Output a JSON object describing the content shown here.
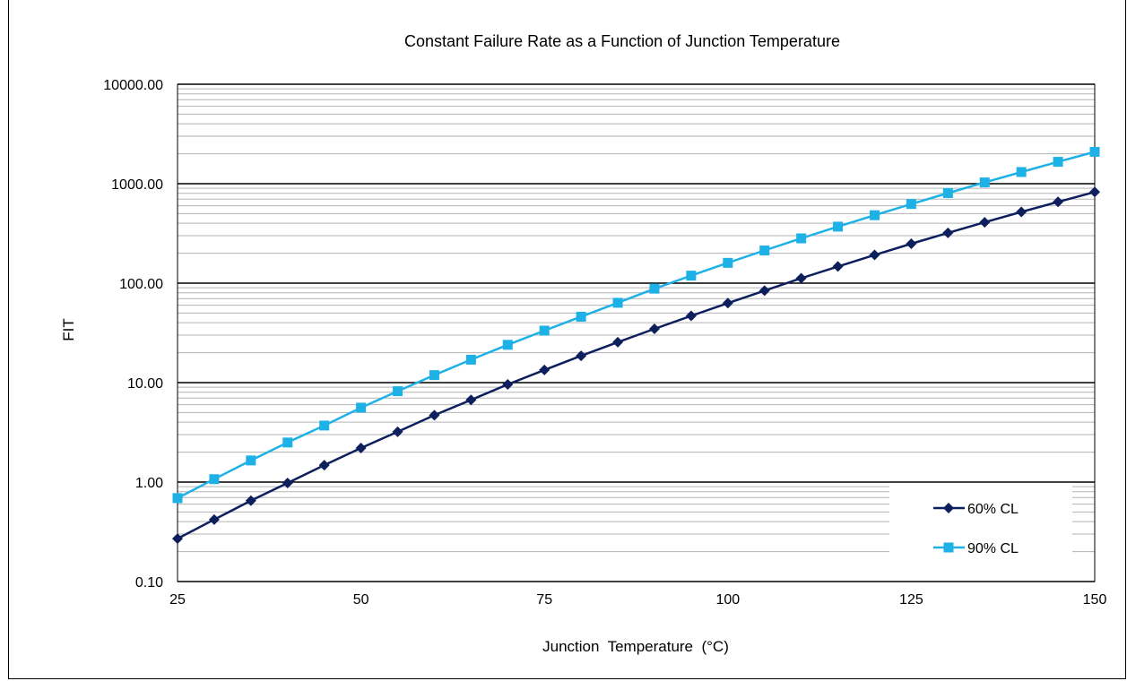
{
  "chart_data": {
    "type": "line",
    "title": "Constant Failure Rate as a Function of Junction Temperature",
    "xlabel": "Junction  Temperature  (°C)",
    "ylabel": "FIT",
    "x_scale": "linear",
    "y_scale": "log",
    "xlim": [
      25,
      150
    ],
    "ylim": [
      0.1,
      10000
    ],
    "x_ticks": [
      25,
      50,
      75,
      100,
      125,
      150
    ],
    "x_tick_labels": [
      "25",
      "50",
      "75",
      "100",
      "125",
      "150"
    ],
    "y_ticks": [
      0.1,
      1,
      10,
      100,
      1000,
      10000
    ],
    "y_tick_labels": [
      "0.10",
      "1.00",
      "10.00",
      "100.00",
      "1000.00",
      "10000.00"
    ],
    "grid": true,
    "legend_position": "bottom-right",
    "x": [
      25,
      30,
      35,
      40,
      45,
      50,
      55,
      60,
      65,
      70,
      75,
      80,
      85,
      90,
      95,
      100,
      105,
      110,
      115,
      120,
      125,
      130,
      135,
      140,
      145,
      150
    ],
    "series": [
      {
        "name": "60% CL",
        "color": "#0d1f5c",
        "marker": "diamond",
        "values": [
          0.27,
          0.42,
          0.65,
          0.98,
          1.48,
          2.2,
          3.2,
          4.7,
          6.7,
          9.6,
          13.4,
          18.6,
          25.5,
          34.7,
          46.9,
          63.0,
          84.0,
          112,
          147,
          192,
          249,
          320,
          409,
          520,
          657,
          825
        ]
      },
      {
        "name": "90% CL",
        "color": "#1eb1e6",
        "marker": "square",
        "values": [
          0.69,
          1.07,
          1.65,
          2.5,
          3.7,
          5.6,
          8.2,
          11.9,
          17.0,
          24.0,
          33.3,
          46.0,
          63.5,
          88.0,
          119,
          160,
          213,
          282,
          370,
          482,
          625,
          805,
          1030,
          1310,
          1660,
          2090
        ]
      }
    ]
  }
}
